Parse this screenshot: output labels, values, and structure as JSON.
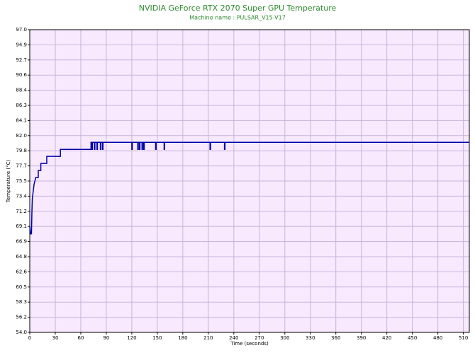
{
  "chart_data": {
    "type": "line",
    "title": "NVIDIA GeForce RTX 2070 Super GPU Temperature",
    "subtitle": "Machine name : PULSAR_V15-V17",
    "x_label": "Time (seconds)",
    "y_label": "Temperature (°C)",
    "color": "#0000aa",
    "grid": true,
    "x": [
      0,
      1,
      2,
      2.5,
      3,
      4,
      5,
      7,
      10,
      10,
      13,
      13,
      20,
      20,
      36,
      36,
      72,
      72,
      73,
      73,
      73.6,
      73.6,
      76,
      76,
      76.6,
      76.6,
      79,
      79,
      79.6,
      79.6,
      83,
      83,
      83.6,
      83.6,
      85.5,
      85.5,
      86.1,
      86.1,
      120,
      120,
      120.6,
      120.6,
      127,
      127,
      127.6,
      127.6,
      129,
      129,
      129.6,
      129.6,
      132,
      132,
      132.6,
      132.6,
      134,
      134,
      134.6,
      134.6,
      148,
      148,
      148.6,
      148.6,
      158,
      158,
      158.6,
      158.6,
      212,
      212,
      212.6,
      212.6,
      229,
      229,
      229.6,
      229.6,
      517
    ],
    "values": [
      69,
      68,
      68,
      71,
      73,
      74,
      75,
      76,
      76,
      77,
      77,
      78,
      78,
      79,
      79,
      80,
      80,
      81,
      81,
      80,
      80,
      81,
      81,
      80,
      80,
      81,
      81,
      80,
      80,
      81,
      81,
      80,
      80,
      81,
      81,
      80,
      80,
      81,
      81,
      80,
      80,
      81,
      81,
      80,
      80,
      81,
      81,
      80,
      80,
      81,
      81,
      80,
      80,
      81,
      81,
      80,
      80,
      81,
      81,
      80,
      80,
      81,
      81,
      80,
      80,
      81,
      81,
      80,
      80,
      81,
      81,
      80,
      80,
      81,
      81
    ],
    "xlim": [
      0,
      517
    ],
    "xticks": [
      0,
      30,
      60,
      90,
      120,
      150,
      180,
      210,
      240,
      270,
      300,
      330,
      360,
      390,
      420,
      450,
      480,
      510
    ],
    "ylim": [
      54,
      97
    ],
    "yticks": [
      {
        "value": 54,
        "label": "54.0"
      },
      {
        "value": 56.15,
        "label": "56.2"
      },
      {
        "value": 58.3,
        "label": "58.3"
      },
      {
        "value": 60.45,
        "label": "60.5"
      },
      {
        "value": 62.6,
        "label": "62.6"
      },
      {
        "value": 64.75,
        "label": "64.8"
      },
      {
        "value": 66.9,
        "label": "66.9"
      },
      {
        "value": 69.05,
        "label": "69.1"
      },
      {
        "value": 71.2,
        "label": "71.2"
      },
      {
        "value": 73.35,
        "label": "73.4"
      },
      {
        "value": 75.5,
        "label": "75.5"
      },
      {
        "value": 77.65,
        "label": "77.7"
      },
      {
        "value": 79.8,
        "label": "79.8"
      },
      {
        "value": 81.95,
        "label": "82.0"
      },
      {
        "value": 84.1,
        "label": "84.1"
      },
      {
        "value": 86.25,
        "label": "86.3"
      },
      {
        "value": 88.4,
        "label": "88.4"
      },
      {
        "value": 90.55,
        "label": "90.6"
      },
      {
        "value": 92.7,
        "label": "92.7"
      },
      {
        "value": 94.85,
        "label": "94.9"
      },
      {
        "value": 97,
        "label": "97.0"
      }
    ]
  }
}
